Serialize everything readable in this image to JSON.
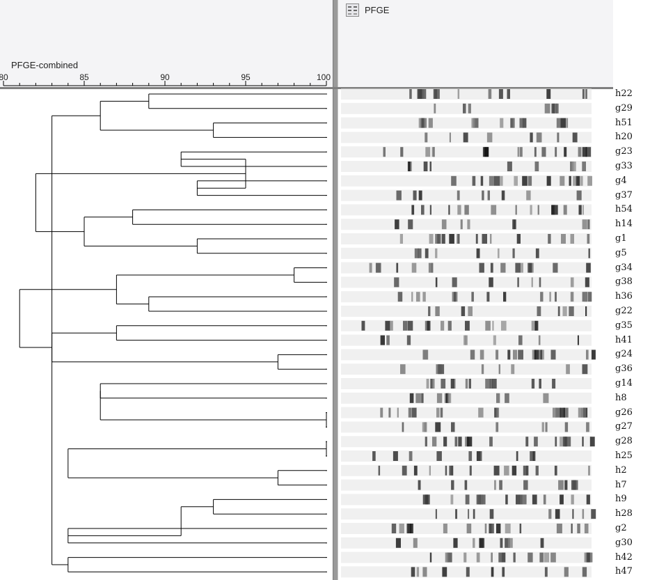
{
  "dendrogram": {
    "axis_title": "PFGE-combined",
    "axis_min": 80,
    "axis_max": 100,
    "ticks": [
      "80",
      "85",
      "90",
      "95",
      "100"
    ]
  },
  "gel_panel": {
    "title": "PFGE",
    "icon": "gel-image-icon"
  },
  "leaves": [
    "h22",
    "g29",
    "h51",
    "h20",
    "g23",
    "g33",
    "g4",
    "g37",
    "h54",
    "h14",
    "g1",
    "g5",
    "g34",
    "g38",
    "h36",
    "g22",
    "g35",
    "h41",
    "g24",
    "g36",
    "g14",
    "h8",
    "g26",
    "g27",
    "g28",
    "h25",
    "h2",
    "h7",
    "h9",
    "h28",
    "g2",
    "g30",
    "h42",
    "h47"
  ],
  "tree": [
    [
      0,
      1,
      89
    ],
    [
      2,
      3,
      93
    ],
    [
      4,
      5,
      91
    ],
    [
      6,
      7,
      92
    ],
    [
      8,
      9,
      88
    ],
    [
      10,
      11,
      92
    ],
    [
      12,
      13,
      98
    ],
    [
      14,
      15,
      89
    ],
    [
      16,
      17,
      87
    ],
    [
      18,
      19,
      97
    ],
    [
      20,
      21,
      86
    ],
    [
      22,
      23,
      100
    ],
    [
      24,
      25,
      100
    ],
    [
      26,
      27,
      97
    ],
    [
      28,
      29,
      93
    ],
    [
      30,
      31,
      84
    ],
    [
      32,
      33,
      84
    ],
    [
      34,
      35,
      86
    ],
    [
      36,
      37,
      95
    ],
    [
      38,
      39,
      85
    ],
    [
      40,
      41,
      87
    ],
    [
      42,
      43,
      83
    ],
    [
      44,
      45,
      86
    ],
    [
      46,
      47,
      84
    ],
    [
      48,
      49,
      91
    ],
    [
      50,
      51,
      83
    ],
    [
      52,
      53,
      82
    ],
    [
      54,
      55,
      81
    ]
  ],
  "colors": {
    "line": "#000000",
    "panel": "#f4f4f6",
    "divider": "#7f7f7f"
  }
}
